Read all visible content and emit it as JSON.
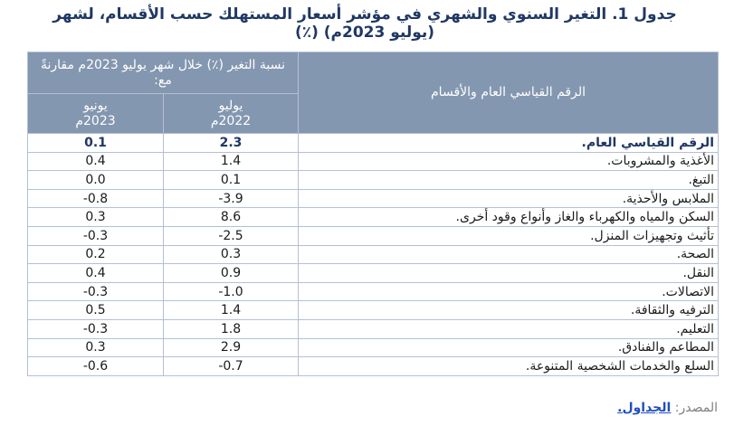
{
  "header": {
    "title_line1": "جدول 1. التغير السنوي والشهري في مؤشر أسعار المستهلك حسب الأقسام، لشهر",
    "title_line2": "(يوليو 2023م) (٪)"
  },
  "table": {
    "columns": {
      "label": "الرقم القياسي العام والأقسام",
      "group": "نسبة التغير (٪) خلال شهر يوليو 2023م مقارنةً مع:",
      "yoy": "يوليو 2022م",
      "mom": "يونيو 2023م"
    },
    "rows": [
      [
        "الرقم القياسي العام.",
        "2.3",
        "0.1"
      ],
      [
        "الأغذية والمشروبات.",
        "1.4",
        "0.4"
      ],
      [
        "التبغ.",
        "0.1",
        "0.0"
      ],
      [
        "الملابس والأحذية.",
        "-3.9",
        "-0.8"
      ],
      [
        "السكن والمياه والكهرباء والغاز وأنواع وقود أخرى.",
        "8.6",
        "0.3"
      ],
      [
        "تأثيث وتجهيزات المنزل.",
        "-2.5",
        "-0.3"
      ],
      [
        "الصحة.",
        "0.3",
        "0.2"
      ],
      [
        "النقل.",
        "0.9",
        "0.4"
      ],
      [
        "الاتصالات.",
        "-1.0",
        "-0.3"
      ],
      [
        "الترفيه والثقافة.",
        "1.4",
        "0.5"
      ],
      [
        "التعليم.",
        "1.8",
        "-0.3"
      ],
      [
        "المطاعم والفنادق.",
        "2.9",
        "0.3"
      ],
      [
        "السلع والخدمات الشخصية المتنوعة.",
        "-0.7",
        "-0.6"
      ]
    ]
  },
  "footer": {
    "source_label": "المصدر:",
    "source_link": "الجداول."
  }
}
